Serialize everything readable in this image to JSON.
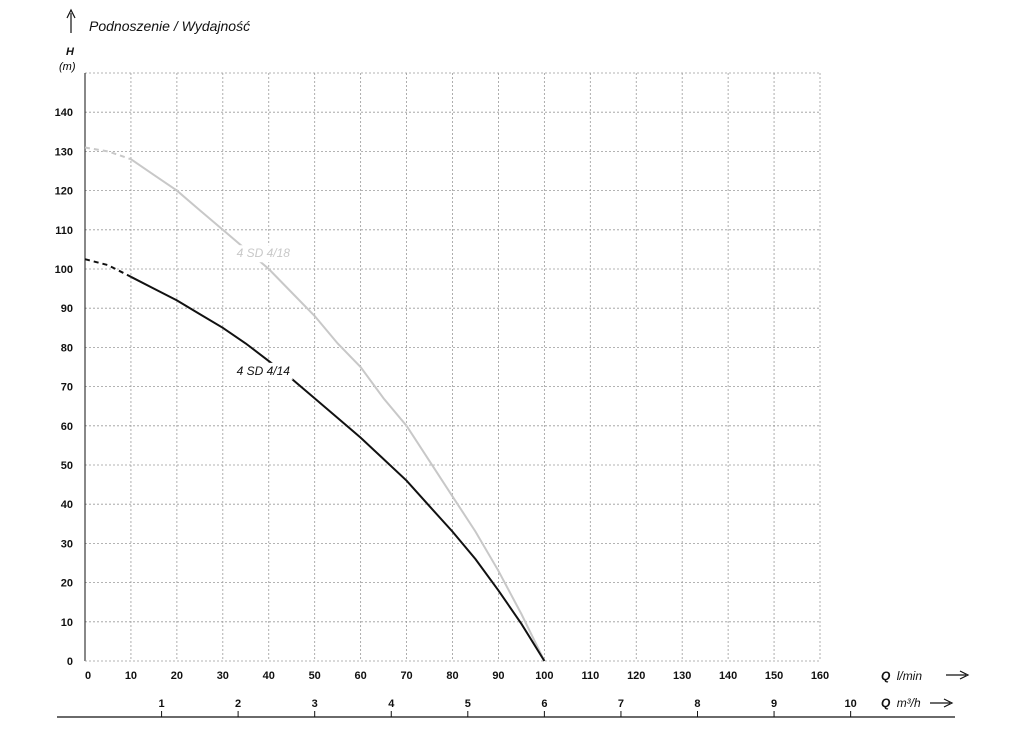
{
  "chart_data": {
    "type": "line",
    "title": "Podnoszenie / Wydajność",
    "ylabel": "H",
    "yunit": "(m)",
    "xlabel_prefix": "Q",
    "xlabel_unit": "l/min",
    "x2label_prefix": "Q",
    "x2label_unit": "m³/h",
    "xlim": [
      0,
      160
    ],
    "ylim": [
      0,
      150
    ],
    "xticks": [
      "0",
      "10",
      "20",
      "30",
      "40",
      "50",
      "60",
      "70",
      "80",
      "90",
      "100",
      "110",
      "120",
      "130",
      "140",
      "150",
      "160"
    ],
    "yticks": [
      "0",
      "10",
      "20",
      "30",
      "40",
      "50",
      "60",
      "70",
      "80",
      "90",
      "100",
      "110",
      "120",
      "130",
      "140"
    ],
    "x2ticks": [
      {
        "label": "1",
        "x": 16.67
      },
      {
        "label": "2",
        "x": 33.33
      },
      {
        "label": "3",
        "x": 50
      },
      {
        "label": "4",
        "x": 66.67
      },
      {
        "label": "5",
        "x": 83.33
      },
      {
        "label": "6",
        "x": 100
      },
      {
        "label": "7",
        "x": 116.67
      },
      {
        "label": "8",
        "x": 133.33
      },
      {
        "label": "9",
        "x": 150
      },
      {
        "label": "10",
        "x": 166.67
      }
    ],
    "grid": true,
    "series": [
      {
        "name": "4 SD 4/18",
        "color": "#c8c8c8",
        "label_at": [
          33,
          103
        ],
        "dashed_until": 10,
        "x": [
          0,
          5,
          10,
          15,
          20,
          25,
          30,
          35,
          40,
          45,
          50,
          55,
          60,
          65,
          70,
          75,
          80,
          85,
          90,
          95,
          100
        ],
        "y": [
          131,
          130,
          128,
          124,
          120,
          115,
          110,
          105,
          100,
          94,
          88,
          81,
          75,
          67,
          60,
          51,
          42,
          33,
          23,
          12,
          0
        ]
      },
      {
        "name": "4 SD 4/14",
        "color": "#111111",
        "label_at": [
          33,
          73
        ],
        "dashed_until": 10,
        "x": [
          0,
          5,
          10,
          15,
          20,
          25,
          30,
          35,
          40,
          45,
          50,
          55,
          60,
          65,
          70,
          75,
          80,
          85,
          90,
          95,
          100
        ],
        "y": [
          102.5,
          101,
          98,
          95,
          92,
          88.5,
          85,
          81,
          76.5,
          72,
          67,
          62,
          57,
          51.5,
          46,
          39.5,
          33,
          26,
          18,
          9.5,
          0
        ]
      }
    ]
  }
}
